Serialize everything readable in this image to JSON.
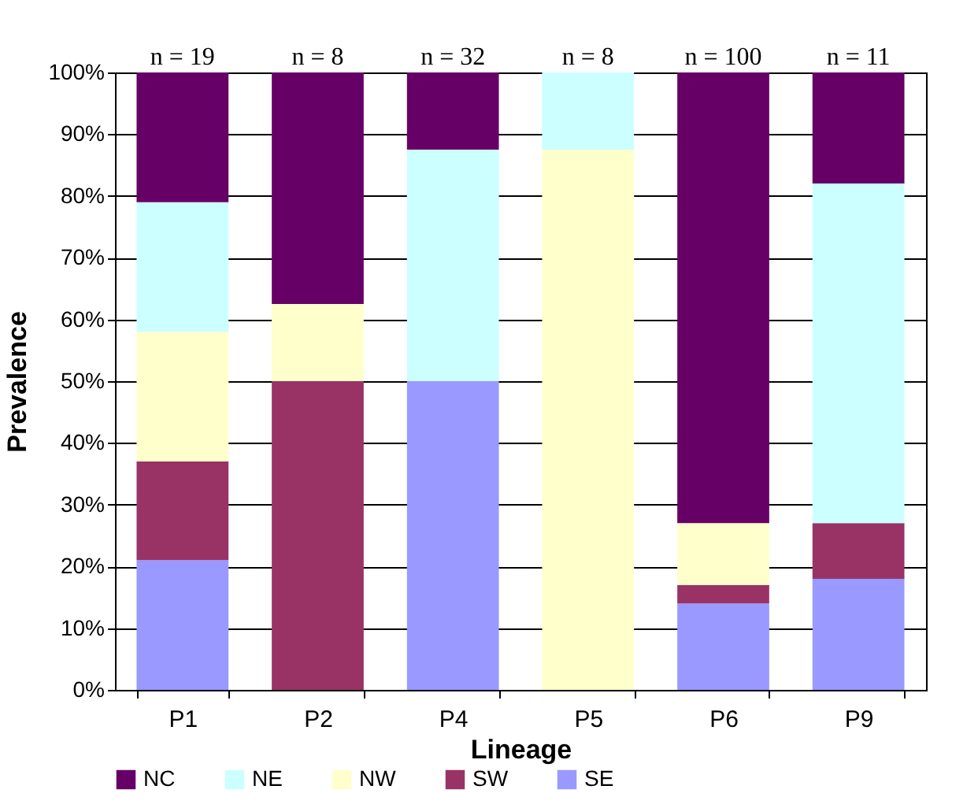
{
  "chart_data": {
    "type": "bar",
    "stacked": true,
    "xlabel": "Lineage",
    "ylabel": "Prevalence",
    "categories": [
      "P1",
      "P2",
      "P4",
      "P5",
      "P6",
      "P9"
    ],
    "series": [
      {
        "name": "SE",
        "color": "#9999ff",
        "values": [
          21,
          0,
          50,
          0,
          14,
          18
        ]
      },
      {
        "name": "SW",
        "color": "#993366",
        "values": [
          16,
          50,
          0,
          0,
          3,
          9
        ]
      },
      {
        "name": "NW",
        "color": "#ffffcc",
        "values": [
          21,
          12.5,
          0,
          87.5,
          10,
          0
        ]
      },
      {
        "name": "NE",
        "color": "#ccffff",
        "values": [
          21,
          0,
          37.5,
          12.5,
          0,
          55
        ]
      },
      {
        "name": "NC",
        "color": "#660066",
        "values": [
          21,
          37.5,
          12.5,
          0,
          73,
          18
        ]
      }
    ],
    "ylim": [
      0,
      100
    ],
    "yticks": [
      {
        "value": 0,
        "label": "0%"
      },
      {
        "value": 10,
        "label": "10%"
      },
      {
        "value": 20,
        "label": "20%"
      },
      {
        "value": 30,
        "label": "30%"
      },
      {
        "value": 40,
        "label": "40%"
      },
      {
        "value": 50,
        "label": "50%"
      },
      {
        "value": 60,
        "label": "60%"
      },
      {
        "value": 70,
        "label": "70%"
      },
      {
        "value": 80,
        "label": "80%"
      },
      {
        "value": 90,
        "label": "90%"
      },
      {
        "value": 100,
        "label": "100%"
      }
    ],
    "grid": "y",
    "legend": "bottom",
    "annotations": [
      {
        "text": "n = 19",
        "x": "P1",
        "y": 100
      },
      {
        "text": "n = 8",
        "x": "P2",
        "y": 100
      },
      {
        "text": "n = 32",
        "x": "P4",
        "y": 100
      },
      {
        "text": "n = 8",
        "x": "P5",
        "y": 100
      },
      {
        "text": "n = 100",
        "x": "P6",
        "y": 100
      },
      {
        "text": "n = 11",
        "x": "P9",
        "y": 100
      }
    ]
  }
}
